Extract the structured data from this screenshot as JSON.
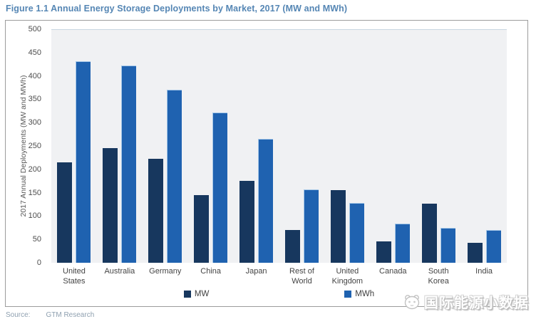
{
  "title": "Figure 1.1 Annual Energy Storage Deployments by Market, 2017  (MW and MWh)",
  "chart_data": {
    "type": "bar",
    "categories": [
      "United States",
      "Australia",
      "Germany",
      "China",
      "Japan",
      "Rest of World",
      "United Kingdom",
      "Canada",
      "South Korea",
      "India"
    ],
    "series": [
      {
        "name": "MW",
        "color": "#17375e",
        "values": [
          215,
          246,
          222,
          145,
          175,
          70,
          155,
          45,
          127,
          43
        ]
      },
      {
        "name": "MWh",
        "color": "#1f62b0",
        "values": [
          431,
          422,
          371,
          321,
          266,
          157,
          128,
          84,
          75,
          70
        ]
      }
    ],
    "title": "Figure 1.1 Annual Energy Storage Deployments by Market, 2017  (MW and MWh)",
    "xlabel": "",
    "ylabel": "2017 Annual Deployments (MW and MWh)",
    "ylim": [
      0,
      500
    ],
    "ytick_step": 50,
    "grid": false,
    "legend_position": "bottom",
    "plot_bg": "#f0f1f3"
  },
  "footer": {
    "source_label": "Source:",
    "source_value": "GTM Research"
  },
  "watermark": {
    "text": "国际能源小数据",
    "icon": "panda-icon"
  },
  "colors": {
    "title": "#5586b4",
    "mw_bar": "#17375e",
    "mwh_bar": "#1f62b0",
    "border": "#9c9c9c",
    "axis_text": "#4d4d4d"
  }
}
